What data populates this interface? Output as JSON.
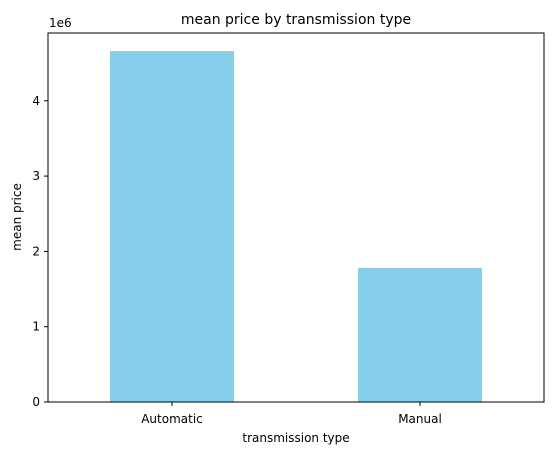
{
  "chart_data": {
    "type": "bar",
    "title": "mean price by transmission type",
    "xlabel": "transmission type",
    "ylabel": "mean price",
    "categories": [
      "Automatic",
      "Manual"
    ],
    "values": [
      4660000,
      1780000
    ],
    "ylim": [
      0,
      4900000
    ],
    "yticks": [
      0,
      1000000,
      2000000,
      3000000,
      4000000
    ],
    "ytick_labels": [
      "0",
      "1",
      "2",
      "3",
      "4"
    ],
    "y_offset_label": "1e6",
    "bar_color": "#87ceeb",
    "grid": false,
    "legend": "none"
  }
}
